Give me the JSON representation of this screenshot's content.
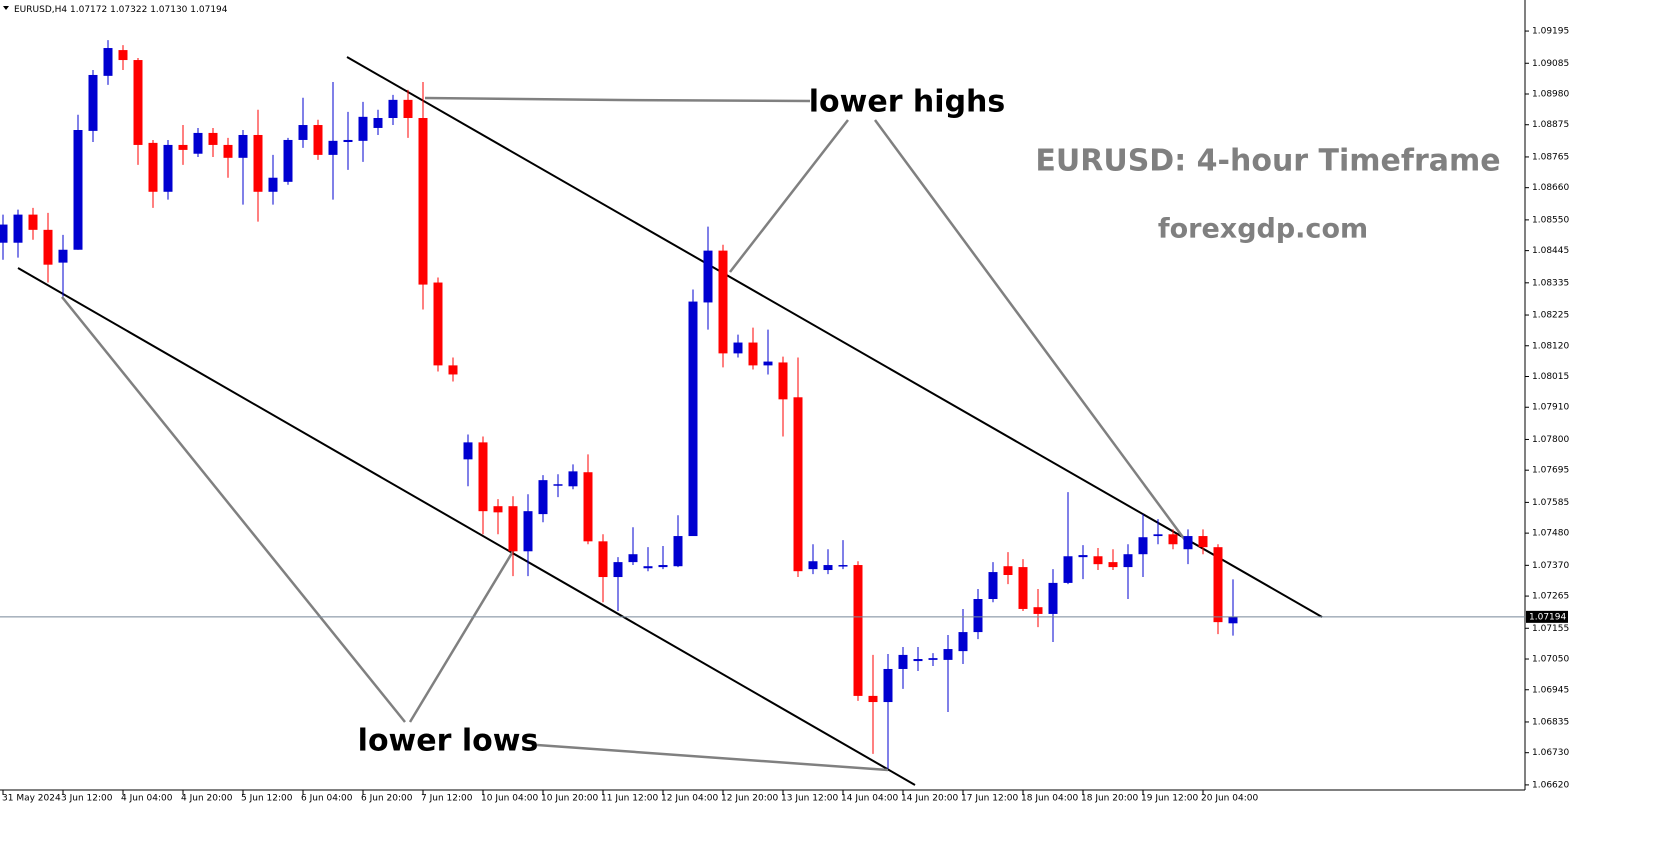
{
  "chart_data": {
    "type": "candlestick",
    "symbol": "EURUSD,H4",
    "last_bar_labels": [
      "1.07172",
      "1.07322",
      "1.07130",
      "1.07194"
    ],
    "title": "EURUSD: 4-hour Timeframe",
    "subtitle": "forexgdp.com",
    "annotations": [
      "lower highs",
      "lower lows"
    ],
    "up_color": "#0000d0",
    "down_color": "#ff0000",
    "categories": [
      "31 May 2024",
      null,
      null,
      null,
      "3 Jun 12:00",
      null,
      null,
      null,
      "4 Jun 04:00",
      null,
      null,
      null,
      "4 Jun 20:00",
      null,
      null,
      null,
      "5 Jun 12:00",
      null,
      null,
      null,
      "6 Jun 04:00",
      null,
      null,
      null,
      "6 Jun 20:00",
      null,
      null,
      null,
      "7 Jun 12:00",
      null,
      null,
      null,
      "10 Jun 04:00",
      null,
      null,
      null,
      "10 Jun 20:00",
      null,
      null,
      null,
      "11 Jun 12:00",
      null,
      null,
      null,
      "12 Jun 04:00",
      null,
      null,
      null,
      "12 Jun 20:00",
      null,
      null,
      null,
      "13 Jun 12:00",
      null,
      null,
      null,
      "14 Jun 04:00",
      null,
      null,
      null,
      "14 Jun 20:00",
      null,
      null,
      null,
      "17 Jun 12:00",
      null,
      null,
      null,
      "18 Jun 04:00",
      null,
      null,
      null,
      "18 Jun 20:00",
      null,
      null,
      null,
      "19 Jun 12:00",
      null,
      null,
      null,
      "20 Jun 04:00",
      null,
      null
    ],
    "open": [
      1.08472,
      1.08472,
      1.08568,
      1.08516,
      1.08404,
      1.08448,
      1.08854,
      1.09042,
      1.0913,
      1.09096,
      1.08813,
      1.08646,
      1.08806,
      1.08776,
      1.08847,
      1.08806,
      1.08762,
      1.0884,
      1.08646,
      1.0868,
      1.08823,
      1.08874,
      1.08772,
      1.08816,
      1.0882,
      1.08864,
      1.08898,
      1.0896,
      1.08898,
      1.08336,
      1.08053,
      1.07732,
      1.0779,
      1.07572,
      1.07572,
      1.07418,
      1.07545,
      1.07643,
      1.0764,
      1.07688,
      1.07452,
      1.0733,
      1.07381,
      1.0736,
      1.07364,
      1.07367,
      1.0747,
      1.08268,
      1.08445,
      1.08094,
      1.08131,
      1.08053,
      1.08063,
      1.07944,
      1.07357,
      1.07354,
      1.07367,
      1.07371,
      1.06924,
      1.06903,
      1.07016,
      1.07043,
      1.07047,
      1.07047,
      1.07077,
      1.07142,
      1.07255,
      1.07367,
      1.07364,
      1.07227,
      1.07204,
      1.0731,
      1.07398,
      1.07401,
      1.07381,
      1.07364,
      1.07408,
      1.0747,
      1.07476,
      1.07425,
      1.0747,
      1.07432,
      1.07172
    ],
    "high": [
      1.08568,
      1.08585,
      1.08591,
      1.08574,
      1.08499,
      1.08909,
      1.09062,
      1.09164,
      1.09147,
      1.09103,
      1.08823,
      1.08823,
      1.08874,
      1.08864,
      1.08864,
      1.0883,
      1.08857,
      1.08926,
      1.08772,
      1.0883,
      1.08967,
      1.08892,
      1.09021,
      1.08919,
      1.08953,
      1.08926,
      1.08977,
      1.08994,
      1.09021,
      1.08353,
      1.0808,
      1.07817,
      1.0781,
      1.07596,
      1.07606,
      1.07613,
      1.07678,
      1.07681,
      1.07715,
      1.07749,
      1.07476,
      1.07398,
      1.075,
      1.07432,
      1.07436,
      1.07541,
      1.08312,
      1.08527,
      1.08465,
      1.08158,
      1.08182,
      1.08175,
      1.08083,
      1.0808,
      1.07442,
      1.07425,
      1.07456,
      1.07384,
      1.07064,
      1.07067,
      1.07091,
      1.07091,
      1.0707,
      1.07132,
      1.07221,
      1.07289,
      1.07381,
      1.07415,
      1.07391,
      1.07289,
      1.07357,
      1.0762,
      1.07439,
      1.07429,
      1.07425,
      1.07442,
      1.07545,
      1.07528,
      1.07493,
      1.07493,
      1.07493,
      1.07442,
      1.07322
    ],
    "low": [
      1.08414,
      1.08421,
      1.08482,
      1.08336,
      1.08288,
      1.08448,
      1.08816,
      1.09011,
      1.09062,
      1.08738,
      1.08591,
      1.08619,
      1.08738,
      1.08765,
      1.08765,
      1.08694,
      1.08602,
      1.08544,
      1.08602,
      1.0867,
      1.08796,
      1.08755,
      1.08619,
      1.08721,
      1.08748,
      1.0884,
      1.08874,
      1.0883,
      1.08244,
      1.08032,
      1.07998,
      1.0764,
      1.07476,
      1.07476,
      1.07333,
      1.07333,
      1.07517,
      1.07603,
      1.0763,
      1.07442,
      1.07244,
      1.07214,
      1.07371,
      1.0735,
      1.07357,
      1.07364,
      1.0747,
      1.08175,
      1.08046,
      1.0808,
      1.08039,
      1.08022,
      1.0781,
      1.0733,
      1.0734,
      1.0734,
      1.07357,
      1.06907,
      1.06726,
      1.06675,
      1.06948,
      1.07009,
      1.07026,
      1.06869,
      1.07033,
      1.07118,
      1.07244,
      1.07306,
      1.07214,
      1.07159,
      1.07108,
      1.07306,
      1.07323,
      1.07354,
      1.07354,
      1.07255,
      1.0733,
      1.07442,
      1.07425,
      1.07374,
      1.07408,
      1.07135,
      1.0713
    ],
    "close": [
      1.08534,
      1.08568,
      1.08516,
      1.08397,
      1.08448,
      1.08857,
      1.09045,
      1.09137,
      1.09096,
      1.08806,
      1.08646,
      1.08806,
      1.08789,
      1.08847,
      1.08806,
      1.08762,
      1.0884,
      1.08646,
      1.08694,
      1.08823,
      1.08874,
      1.08772,
      1.0882,
      1.08823,
      1.08902,
      1.08898,
      1.0896,
      1.08898,
      1.08329,
      1.08053,
      1.08022,
      1.0779,
      1.07555,
      1.07551,
      1.07418,
      1.07555,
      1.07661,
      1.07647,
      1.07691,
      1.07452,
      1.0733,
      1.07381,
      1.07408,
      1.07367,
      1.07371,
      1.0747,
      1.08271,
      1.08445,
      1.08094,
      1.08131,
      1.08053,
      1.08066,
      1.07937,
      1.0735,
      1.07384,
      1.07371,
      1.07371,
      1.06924,
      1.06903,
      1.07016,
      1.07064,
      1.0705,
      1.07053,
      1.07084,
      1.07142,
      1.07255,
      1.07347,
      1.07337,
      1.07221,
      1.07204,
      1.0731,
      1.07401,
      1.07405,
      1.07374,
      1.07364,
      1.07408,
      1.07466,
      1.07476,
      1.07442,
      1.0747,
      1.07432,
      1.07176,
      1.07194
    ],
    "ylim": [
      1.06606,
      1.09284
    ],
    "yticks": [
      1.09195,
      1.09085,
      {
        "value": 1.0898,
        "label": "1.08980"
      },
      1.08875,
      1.08765,
      {
        "value": 1.0866,
        "label": "1.08660"
      },
      {
        "value": 1.0855,
        "label": "1.08550"
      },
      1.08445,
      1.08335,
      1.08225,
      {
        "value": 1.0812,
        "label": "1.08120"
      },
      1.08015,
      {
        "value": 1.0791,
        "label": "1.07910"
      },
      {
        "value": 1.078,
        "label": "1.07800"
      },
      1.07695,
      1.07585,
      {
        "value": 1.0748,
        "label": "1.07480"
      },
      {
        "value": 1.0737,
        "label": "1.07370"
      },
      1.07265,
      1.07155,
      {
        "value": 1.0705,
        "label": "1.07050"
      },
      1.06945,
      1.06835,
      {
        "value": 1.0673,
        "label": "1.06730"
      },
      {
        "value": 1.0662,
        "label": "1.06620"
      }
    ],
    "grid": false
  }
}
